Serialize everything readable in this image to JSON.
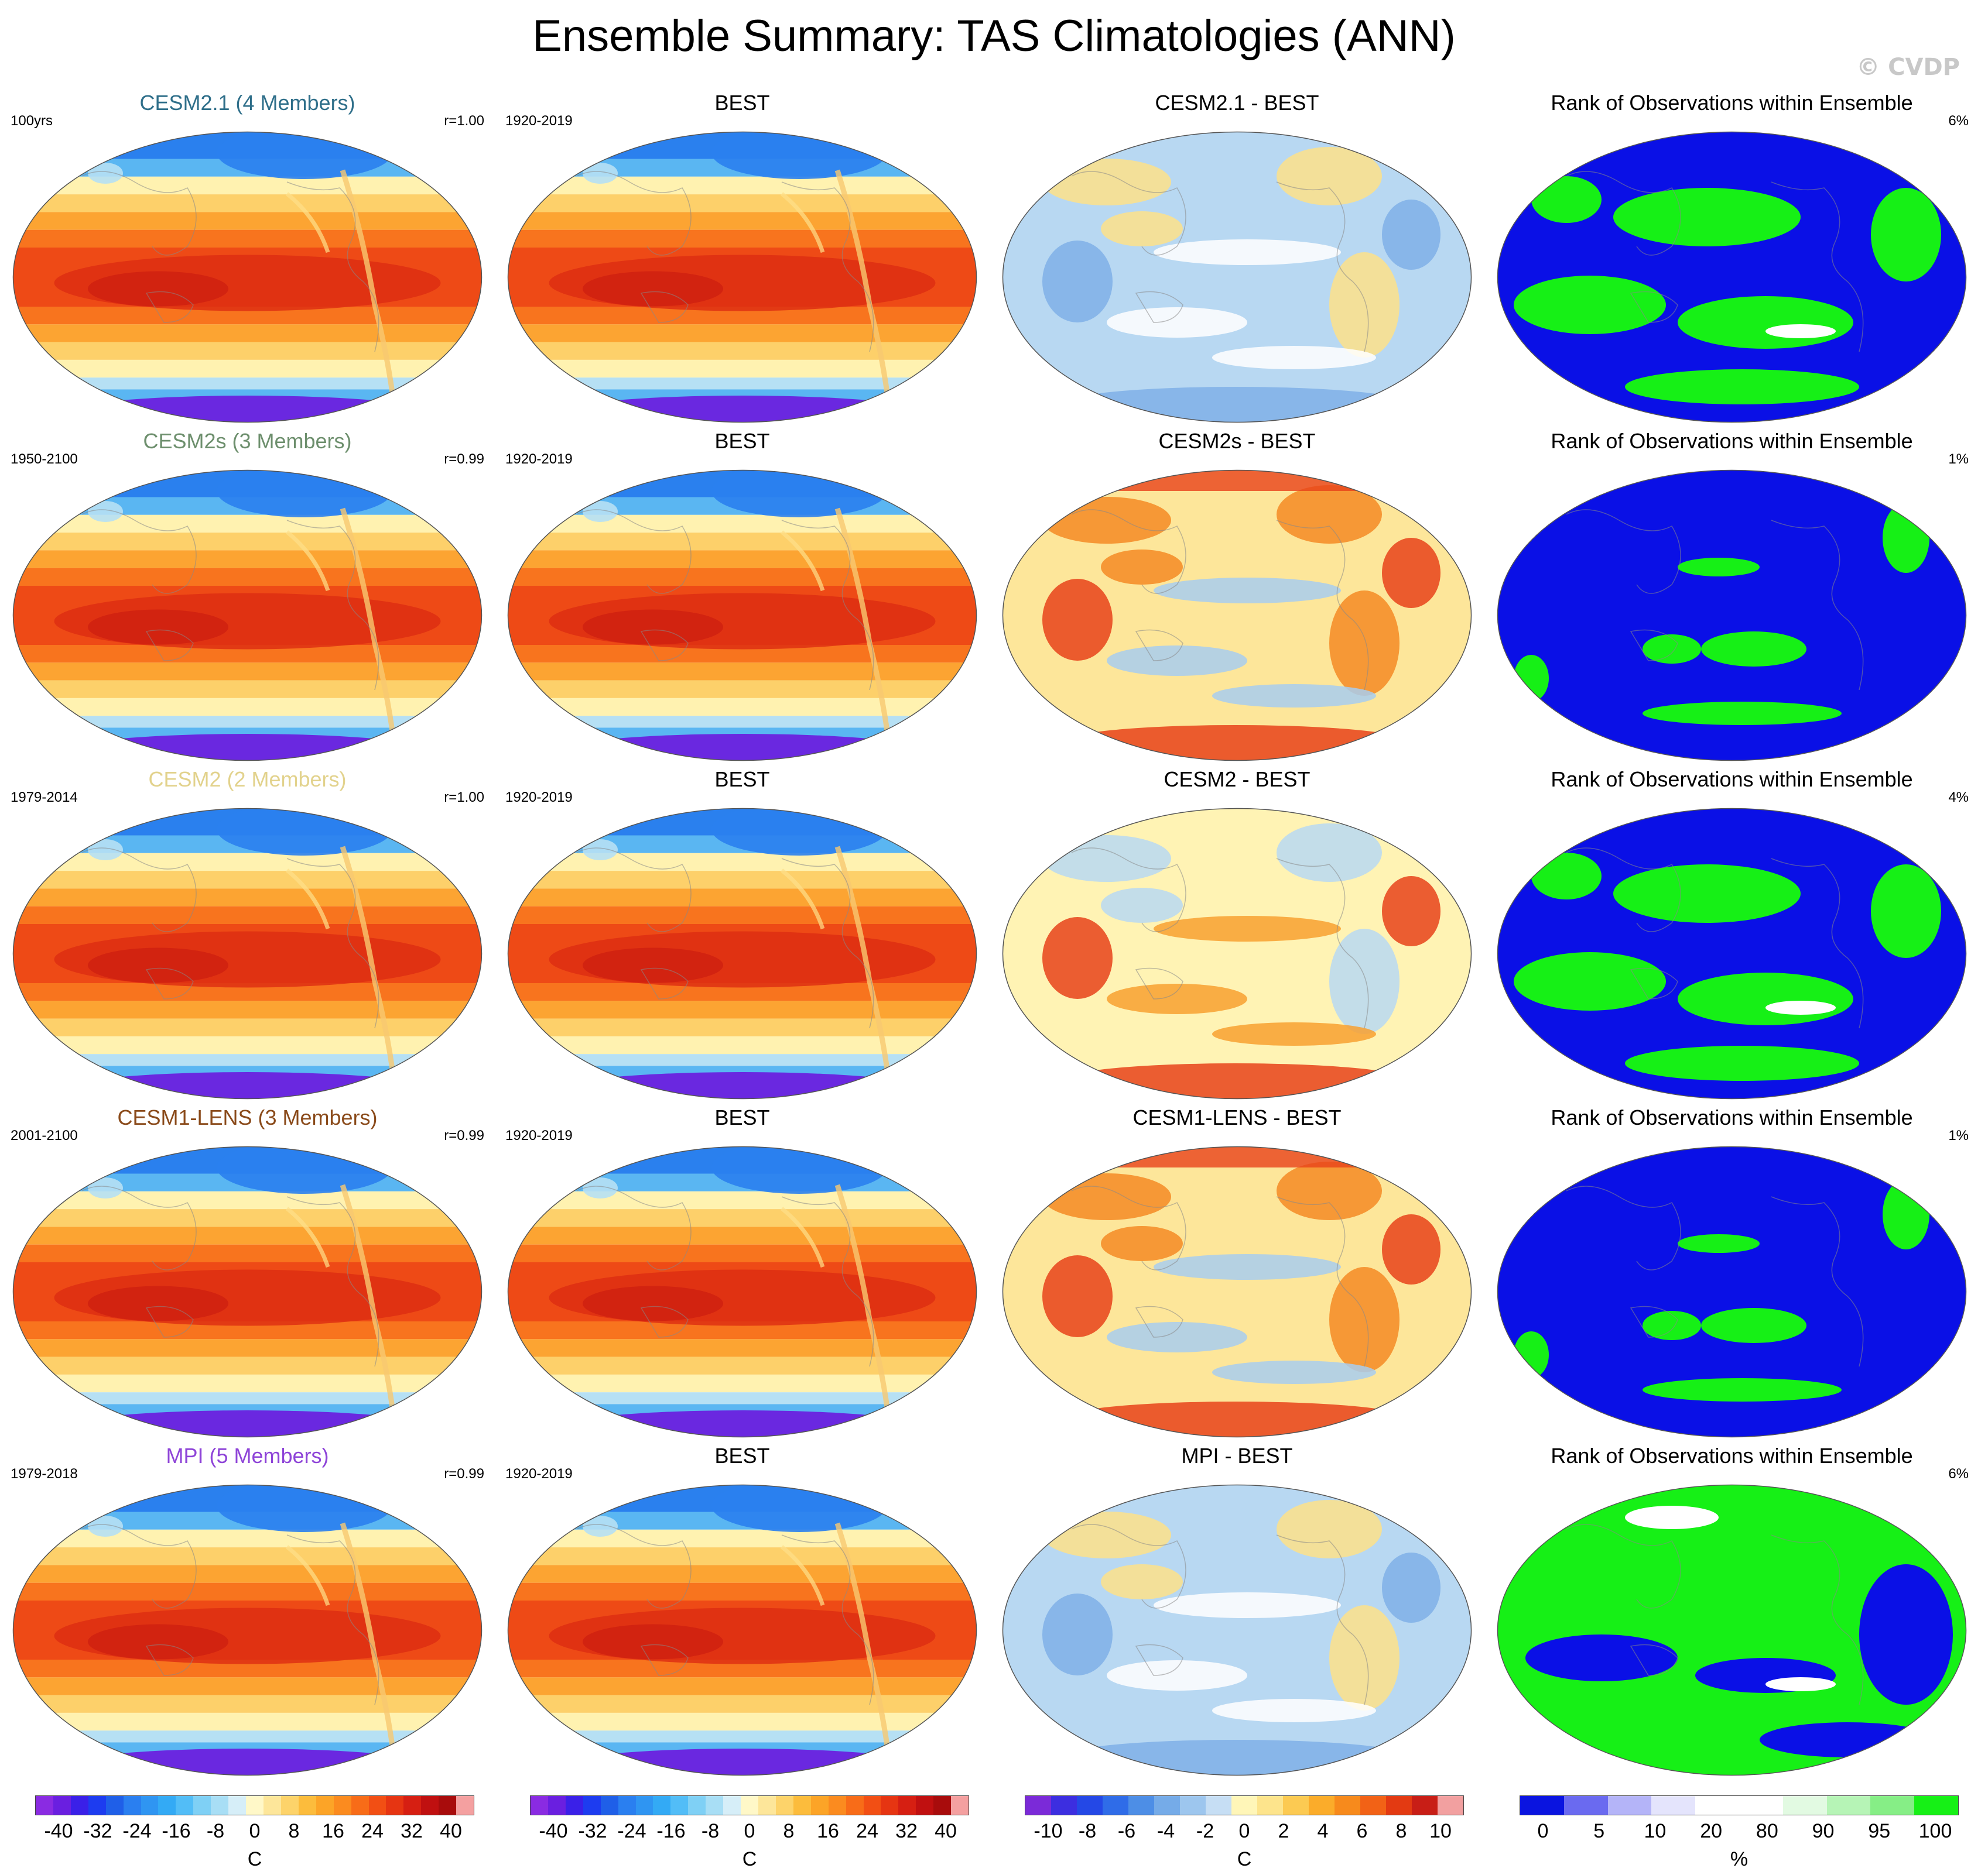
{
  "figure": {
    "title": "Ensemble Summary: TAS Climatologies (ANN)",
    "copyright": "© CVDP"
  },
  "rows": [
    {
      "model": {
        "title": "CESM2.1 (4 Members)",
        "title_color": "#2f6f8a",
        "left": "100yrs",
        "right": "r=1.00"
      },
      "obs": {
        "title": "BEST",
        "left": "1920-2019"
      },
      "diff": {
        "title": "CESM2.1 - BEST",
        "style": "cool"
      },
      "rank": {
        "title": "Rank of Observations within Ensemble",
        "right": "6%",
        "style": "mixed"
      }
    },
    {
      "model": {
        "title": "CESM2s (3 Members)",
        "title_color": "#6d8f6d",
        "left": "1950-2100",
        "right": "r=0.99"
      },
      "obs": {
        "title": "BEST",
        "left": "1920-2019"
      },
      "diff": {
        "title": "CESM2s - BEST",
        "style": "warm"
      },
      "rank": {
        "title": "Rank of Observations within Ensemble",
        "right": "1%",
        "style": "blue"
      }
    },
    {
      "model": {
        "title": "CESM2 (2 Members)",
        "title_color": "#e2d28c",
        "left": "1979-2014",
        "right": "r=1.00"
      },
      "obs": {
        "title": "BEST",
        "left": "1920-2019"
      },
      "diff": {
        "title": "CESM2 - BEST",
        "style": "mixed"
      },
      "rank": {
        "title": "Rank of Observations within Ensemble",
        "right": "4%",
        "style": "mixed"
      }
    },
    {
      "model": {
        "title": "CESM1-LENS (3 Members)",
        "title_color": "#8a4a1a",
        "left": "2001-2100",
        "right": "r=0.99"
      },
      "obs": {
        "title": "BEST",
        "left": "1920-2019"
      },
      "diff": {
        "title": "CESM1-LENS - BEST",
        "style": "warm"
      },
      "rank": {
        "title": "Rank of Observations within Ensemble",
        "right": "1%",
        "style": "blue"
      }
    },
    {
      "model": {
        "title": "MPI (5 Members)",
        "title_color": "#8e44d8",
        "left": "1979-2018",
        "right": "r=0.99"
      },
      "obs": {
        "title": "BEST",
        "left": "1920-2019"
      },
      "diff": {
        "title": "MPI - BEST",
        "style": "cool"
      },
      "rank": {
        "title": "Rank of Observations within Ensemble",
        "right": "6%",
        "style": "green"
      }
    }
  ],
  "colorbars": [
    {
      "ticks": [
        "-40",
        "-32",
        "-24",
        "-16",
        "-8",
        "0",
        "8",
        "16",
        "24",
        "32",
        "40"
      ],
      "unit": "C",
      "colors": [
        "#8a2be2",
        "#6a1fe0",
        "#3a20e8",
        "#1d3cf0",
        "#1f5fe8",
        "#2a7ff0",
        "#2f95f2",
        "#33aaf5",
        "#52bdf7",
        "#7fd0f5",
        "#a8def5",
        "#d6eef8",
        "#fff8c8",
        "#fde69a",
        "#fdd36a",
        "#fcbc3c",
        "#fca427",
        "#fb8b1f",
        "#f86c18",
        "#f24f14",
        "#e63512",
        "#d61f12",
        "#c01010",
        "#a80c0c",
        "#f4a0a0"
      ]
    },
    {
      "ticks": [
        "-40",
        "-32",
        "-24",
        "-16",
        "-8",
        "0",
        "8",
        "16",
        "24",
        "32",
        "40"
      ],
      "unit": "C",
      "colors": [
        "#8a2be2",
        "#6a1fe0",
        "#3a20e8",
        "#1d3cf0",
        "#1f5fe8",
        "#2a7ff0",
        "#2f95f2",
        "#33aaf5",
        "#52bdf7",
        "#7fd0f5",
        "#a8def5",
        "#d6eef8",
        "#fff8c8",
        "#fde69a",
        "#fdd36a",
        "#fcbc3c",
        "#fca427",
        "#fb8b1f",
        "#f86c18",
        "#f24f14",
        "#e63512",
        "#d61f12",
        "#c01010",
        "#a80c0c",
        "#f4a0a0"
      ]
    },
    {
      "ticks": [
        "-10",
        "-8",
        "-6",
        "-4",
        "-2",
        "0",
        "2",
        "4",
        "6",
        "8",
        "10"
      ],
      "unit": "C",
      "colors": [
        "#7b2ad8",
        "#3c2ee0",
        "#2448e6",
        "#2f6ce8",
        "#4d8ee6",
        "#75abe8",
        "#9dc6ee",
        "#c6def4",
        "#fff6b8",
        "#fde48c",
        "#fcca52",
        "#fbac2a",
        "#f78a1c",
        "#f26216",
        "#e33a12",
        "#c81e16",
        "#f2a0a0"
      ]
    },
    {
      "ticks": [
        "0",
        "5",
        "10",
        "20",
        "80",
        "90",
        "95",
        "100"
      ],
      "unit": "%",
      "colors": [
        "#0a14e0",
        "#6a6af0",
        "#b4b4f8",
        "#e4e4fc",
        "#ffffff",
        "#ffffff",
        "#e2fae2",
        "#b6f4b6",
        "#86ee86",
        "#16f016"
      ]
    }
  ],
  "palettes": {
    "temp": [
      "#6a28e0",
      "#2a3aea",
      "#2a80ee",
      "#5ab6f2",
      "#b6e0f4",
      "#fff2b0",
      "#fdd06a",
      "#fca432",
      "#f8741e",
      "#ee4a16",
      "#dc2c12",
      "#cc1c10"
    ],
    "diff_cool": {
      "base": "#b8d8f2",
      "blob_a": "#fde28a",
      "blob_b": "#ffffff",
      "blob_c": "#7fb0e8"
    },
    "diff_warm": {
      "base": "#fde69a",
      "blob_a": "#f48a24",
      "blob_b": "#a8cdee",
      "blob_c": "#e8421a"
    },
    "diff_mixed": {
      "base": "#fff3b4",
      "blob_a": "#b9d8f2",
      "blob_b": "#f8a030",
      "blob_c": "#e8421a"
    },
    "rank_blue": "#0a10e6",
    "rank_green": "#16f016",
    "rank_white": "#ffffff"
  }
}
